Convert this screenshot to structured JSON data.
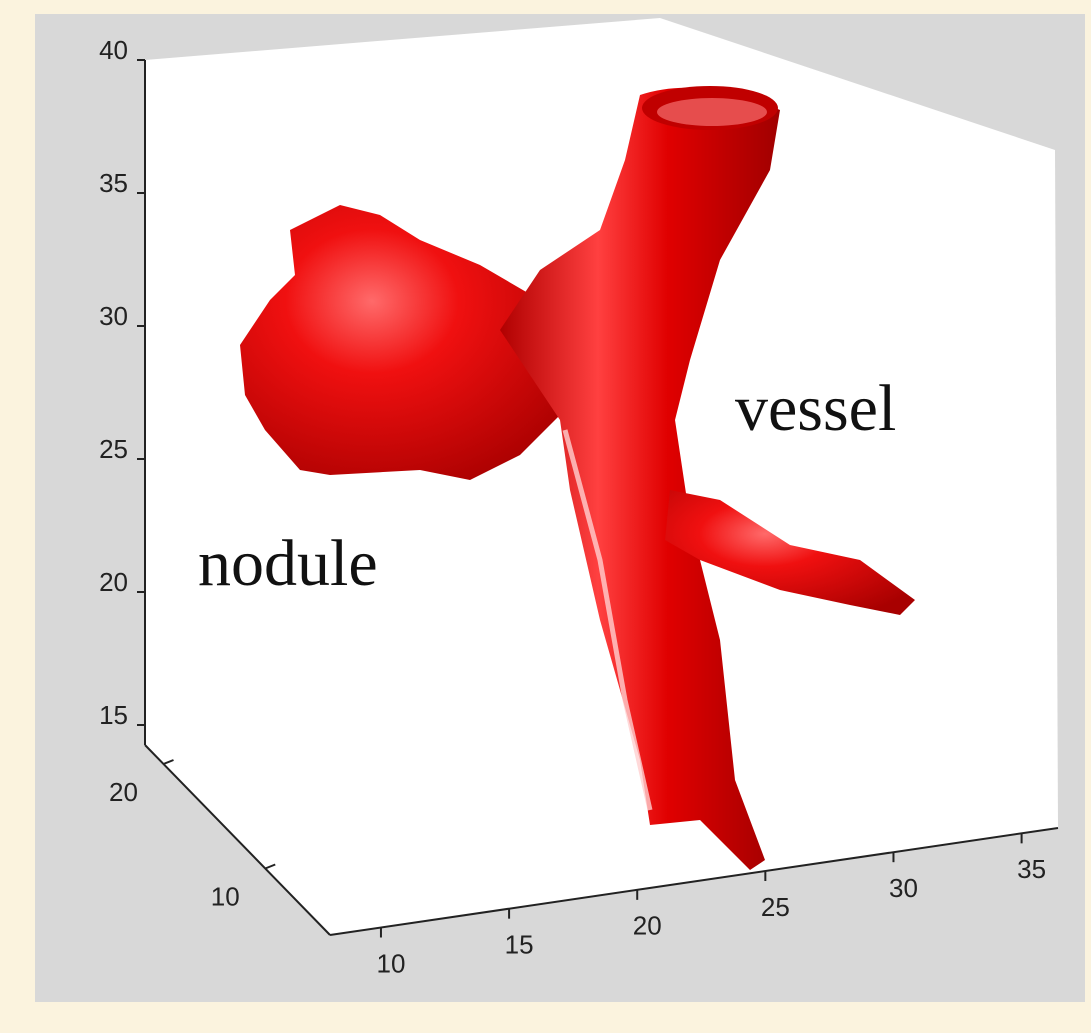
{
  "annotations": {
    "nodule": "nodule",
    "vessel": "vessel"
  },
  "z_ticks": [
    40,
    35,
    30,
    25,
    20,
    15
  ],
  "y_ticks": [
    20,
    10
  ],
  "x_ticks": [
    10,
    15,
    20,
    25,
    30,
    35
  ]
}
